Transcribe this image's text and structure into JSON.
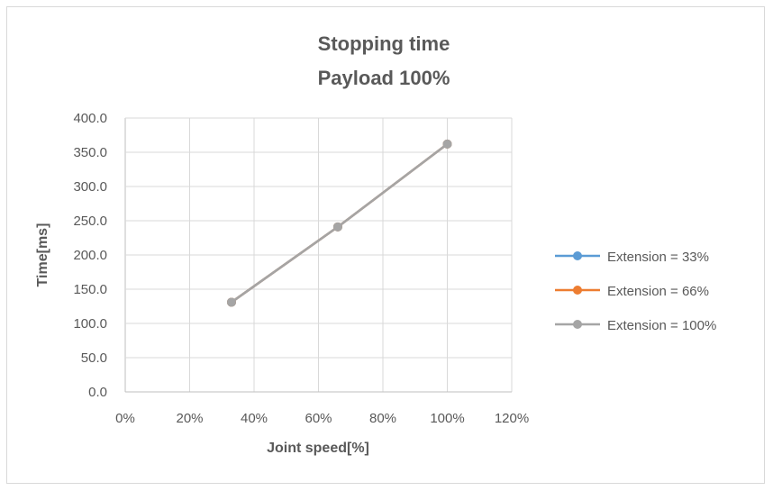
{
  "chart_data": {
    "type": "line",
    "title": "Stopping time",
    "subtitle": "Payload 100%",
    "xlabel": "Joint speed[%]",
    "ylabel": "Time[ms]",
    "xlim": [
      0,
      120
    ],
    "ylim": [
      0,
      400
    ],
    "x_ticks": [
      "0%",
      "20%",
      "40%",
      "60%",
      "80%",
      "100%",
      "120%"
    ],
    "y_ticks": [
      "0.0",
      "50.0",
      "100.0",
      "150.0",
      "200.0",
      "250.0",
      "300.0",
      "350.0",
      "400.0"
    ],
    "grid": true,
    "legend_placement": "right",
    "x": [
      33,
      66,
      100
    ],
    "series": [
      {
        "name": "Extension = 33%",
        "color": "#5B9BD5",
        "values": [
          131,
          241,
          362
        ]
      },
      {
        "name": "Extension = 66%",
        "color": "#ED7D31",
        "values": [
          131,
          241,
          362
        ]
      },
      {
        "name": "Extension = 100%",
        "color": "#A5A5A5",
        "values": [
          131,
          241,
          362
        ]
      }
    ]
  }
}
